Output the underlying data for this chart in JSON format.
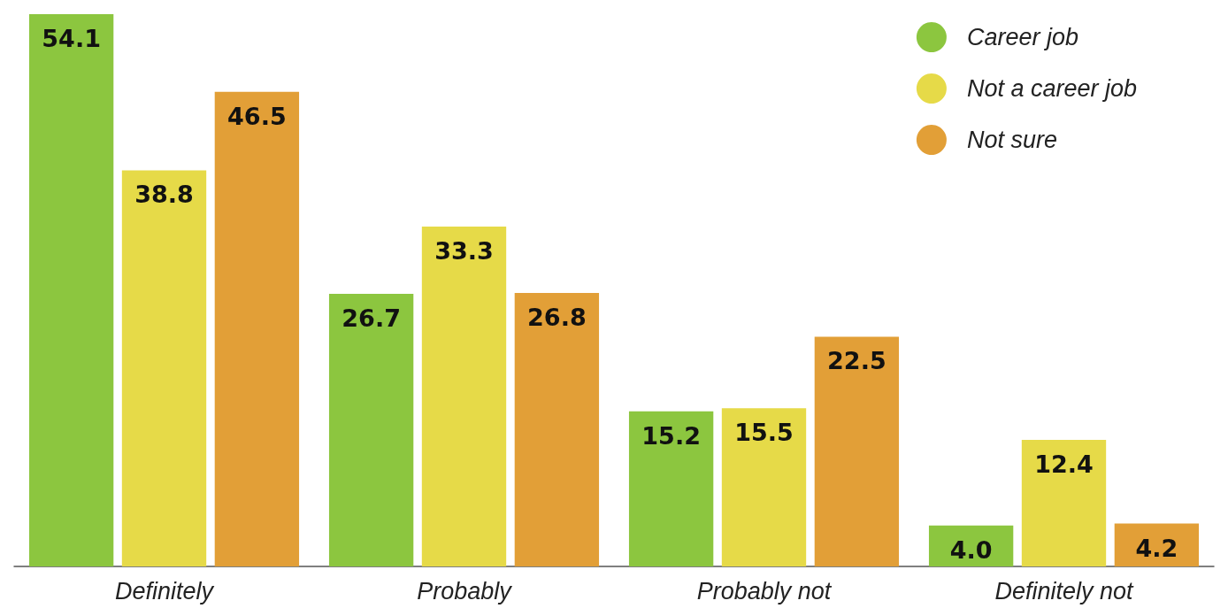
{
  "chart_data": {
    "type": "bar",
    "categories": [
      "Definitely",
      "Probably",
      "Probably not",
      "Definitely not"
    ],
    "series": [
      {
        "name": "Career job",
        "color": "#8cc63f",
        "values": [
          54.1,
          26.7,
          15.2,
          4.0
        ],
        "value_labels": [
          "54.1",
          "26.7",
          "15.2",
          "4.0"
        ]
      },
      {
        "name": "Not a career job",
        "color": "#e6da48",
        "values": [
          38.8,
          33.3,
          15.5,
          12.4
        ],
        "value_labels": [
          "38.8",
          "33.3",
          "15.5",
          "12.4"
        ]
      },
      {
        "name": "Not sure",
        "color": "#e29f37",
        "values": [
          46.5,
          26.8,
          22.5,
          4.2
        ],
        "value_labels": [
          "46.5",
          "26.8",
          "22.5",
          "4.2"
        ]
      }
    ],
    "legend": "top right",
    "grid": false
  }
}
